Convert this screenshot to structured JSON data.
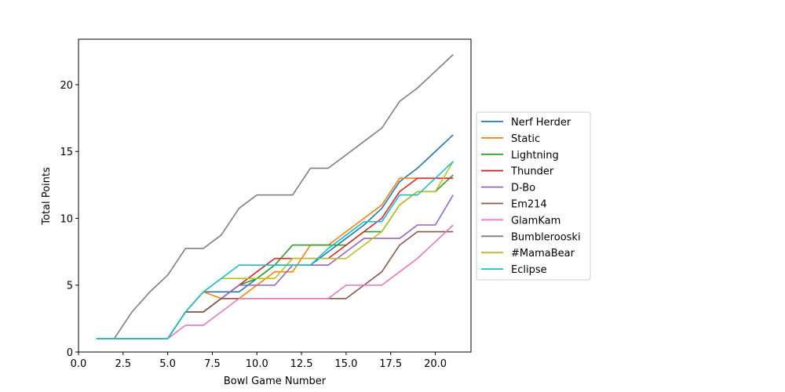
{
  "chart_data": {
    "type": "line",
    "title": "",
    "xlabel": "Bowl Game Number",
    "ylabel": "Total Points",
    "xlim": [
      0,
      22
    ],
    "ylim": [
      0,
      23.4
    ],
    "xticks": [
      0.0,
      2.5,
      5.0,
      7.5,
      10.0,
      12.5,
      15.0,
      17.5,
      20.0
    ],
    "xtick_labels": [
      "0.0",
      "2.5",
      "5.0",
      "7.5",
      "10.0",
      "12.5",
      "15.0",
      "17.5",
      "20.0"
    ],
    "yticks": [
      0,
      5,
      10,
      15,
      20
    ],
    "ytick_labels": [
      "0",
      "5",
      "10",
      "15",
      "20"
    ],
    "grid": false,
    "legend_position": "right, outside plot",
    "x": [
      1,
      2,
      3,
      4,
      5,
      6,
      7,
      8,
      9,
      10,
      11,
      12,
      13,
      14,
      15,
      16,
      17,
      18,
      19,
      20,
      21
    ],
    "series": [
      {
        "name": "Nerf Herder",
        "color": "#1f77b4",
        "values": [
          1,
          1,
          1,
          1,
          1,
          3,
          4.5,
          4.5,
          4.5,
          5.5,
          6.5,
          6.5,
          6.5,
          7.5,
          8.5,
          9.5,
          10.75,
          12.75,
          13.75,
          15,
          16.25
        ]
      },
      {
        "name": "Static",
        "color": "#ff7f0e",
        "values": [
          1,
          1,
          1,
          1,
          1,
          3,
          4.5,
          4,
          4,
          5,
          6,
          6,
          8,
          8,
          9,
          10,
          11,
          13,
          13,
          13,
          13
        ]
      },
      {
        "name": "Lightning",
        "color": "#2ca02c",
        "values": [
          1,
          1,
          1,
          1,
          1,
          3,
          3,
          4,
          5,
          5.5,
          6.5,
          8,
          8,
          8,
          8,
          9,
          9,
          11,
          12,
          12,
          13.25
        ]
      },
      {
        "name": "Thunder",
        "color": "#d62728",
        "values": [
          1,
          1,
          1,
          1,
          1,
          3,
          3,
          4,
          5,
          6,
          7,
          7,
          7,
          7,
          8,
          9,
          10,
          12,
          13,
          13,
          13
        ]
      },
      {
        "name": "D-Bo",
        "color": "#9467bd",
        "values": [
          1,
          1,
          1,
          1,
          1,
          3,
          3,
          4,
          5,
          5,
          5,
          6.5,
          6.5,
          6.5,
          7.5,
          8.5,
          8.5,
          8.5,
          9.5,
          9.5,
          11.75
        ]
      },
      {
        "name": "Em214",
        "color": "#8c564b",
        "values": [
          1,
          1,
          1,
          1,
          1,
          3,
          3,
          4,
          4,
          4,
          4,
          4,
          4,
          4,
          4,
          5,
          6,
          8,
          9,
          9,
          9
        ]
      },
      {
        "name": "GlamKam",
        "color": "#e377c2",
        "values": [
          1,
          1,
          1,
          1,
          1,
          2,
          2,
          3,
          4,
          4,
          4,
          4,
          4,
          4,
          5,
          5,
          5,
          6,
          7,
          8.25,
          9.5
        ]
      },
      {
        "name": "Bumblerooski",
        "color": "#7f7f7f",
        "values": [
          1,
          1,
          3,
          4.5,
          5.75,
          7.75,
          7.75,
          8.75,
          10.75,
          11.75,
          11.75,
          11.75,
          13.75,
          13.75,
          14.75,
          15.75,
          16.75,
          18.75,
          19.75,
          21,
          22.25
        ]
      },
      {
        "name": "#MamaBear",
        "color": "#bcbd22",
        "values": [
          1,
          1,
          1,
          1,
          1,
          3,
          4.5,
          5.5,
          5.5,
          5.5,
          5.5,
          7,
          7,
          7,
          7,
          8,
          9,
          11,
          12,
          12,
          14.25
        ]
      },
      {
        "name": "Eclipse",
        "color": "#17becf",
        "values": [
          1,
          1,
          1,
          1,
          1,
          3,
          4.5,
          5.5,
          6.5,
          6.5,
          6.5,
          6.5,
          6.5,
          7.75,
          8.75,
          9.75,
          9.75,
          11.75,
          11.75,
          13,
          14.25
        ]
      }
    ]
  }
}
